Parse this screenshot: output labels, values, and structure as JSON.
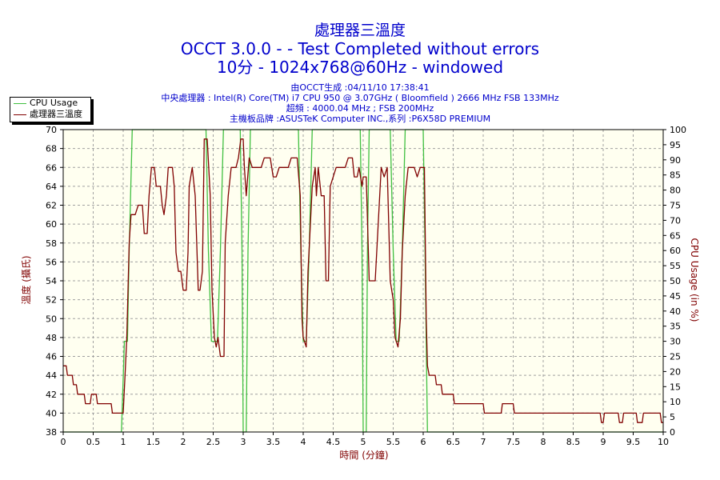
{
  "header": {
    "title": "處理器三溫度",
    "subtitle_1": "OCCT 3.0.0 -  - Test Completed without errors",
    "subtitle_2": "10分 - 1024x768@60Hz - windowed"
  },
  "info": {
    "line1": "由OCCT生成 :04/11/10 17:38:41",
    "line2": "中央處理器 : Intel(R) Core(TM) i7 CPU 950 @ 3.07GHz ( Bloomfield ) 2666 MHz FSB 133MHz",
    "line3": "超頻 : 4000.04 MHz ; FSB 200MHz",
    "line4": "主機板品牌 :ASUSTeK Computer INC.,系列 :P6X58D PREMIUM"
  },
  "colors": {
    "plot_background": "#fffff0",
    "grid": "#a0a0a0",
    "cpu_usage": "#40c040",
    "temperature": "#800000",
    "title_text": "#0000cc"
  },
  "chart_data": {
    "type": "line",
    "xlabel": "時間 (分鐘)",
    "ylabel_left": "溫度 (攝氏)",
    "ylabel_right": "CPU Usage (in %)",
    "xlim": [
      0,
      10
    ],
    "ylim_left": [
      38,
      70
    ],
    "ylim_right": [
      0,
      100
    ],
    "x_ticks": [
      "0",
      "0.5",
      "1",
      "1.5",
      "2",
      "2.5",
      "3",
      "3.5",
      "4",
      "4.5",
      "5",
      "5.5",
      "6",
      "6.5",
      "7",
      "7.5",
      "8",
      "8.5",
      "9",
      "9.5",
      "10"
    ],
    "y_left_ticks": [
      "38",
      "40",
      "42",
      "44",
      "46",
      "48",
      "50",
      "52",
      "54",
      "56",
      "58",
      "60",
      "62",
      "64",
      "66",
      "68",
      "70"
    ],
    "y_right_ticks": [
      "0",
      "5",
      "10",
      "15",
      "20",
      "25",
      "30",
      "35",
      "40",
      "45",
      "50",
      "55",
      "60",
      "65",
      "70",
      "75",
      "80",
      "85",
      "90",
      "95",
      "100"
    ],
    "grid": true,
    "legend_position": "top-left outside",
    "series": [
      {
        "name": "CPU Usage",
        "axis": "right",
        "points": [
          [
            0,
            0
          ],
          [
            0.97,
            0
          ],
          [
            1.02,
            30
          ],
          [
            1.07,
            30
          ],
          [
            1.1,
            60
          ],
          [
            1.15,
            100
          ],
          [
            2.38,
            100
          ],
          [
            2.42,
            60
          ],
          [
            2.47,
            30
          ],
          [
            2.57,
            30
          ],
          [
            2.62,
            60
          ],
          [
            2.67,
            100
          ],
          [
            2.95,
            100
          ],
          [
            2.98,
            60
          ],
          [
            3.0,
            0
          ],
          [
            3.05,
            0
          ],
          [
            3.08,
            60
          ],
          [
            3.12,
            100
          ],
          [
            3.92,
            100
          ],
          [
            3.96,
            60
          ],
          [
            4.0,
            30
          ],
          [
            4.05,
            30
          ],
          [
            4.1,
            60
          ],
          [
            4.15,
            100
          ],
          [
            4.95,
            100
          ],
          [
            4.98,
            60
          ],
          [
            5.0,
            0
          ],
          [
            5.05,
            0
          ],
          [
            5.07,
            60
          ],
          [
            5.1,
            100
          ],
          [
            5.45,
            100
          ],
          [
            5.5,
            60
          ],
          [
            5.55,
            30
          ],
          [
            5.6,
            30
          ],
          [
            5.65,
            60
          ],
          [
            5.7,
            100
          ],
          [
            6.0,
            100
          ],
          [
            6.03,
            60
          ],
          [
            6.07,
            0
          ],
          [
            10,
            0
          ]
        ]
      },
      {
        "name": "處理器三溫度",
        "axis": "left",
        "points": [
          [
            0,
            45
          ],
          [
            0.05,
            45
          ],
          [
            0.07,
            44
          ],
          [
            0.15,
            44
          ],
          [
            0.17,
            43
          ],
          [
            0.22,
            43
          ],
          [
            0.24,
            42
          ],
          [
            0.35,
            42
          ],
          [
            0.37,
            41
          ],
          [
            0.45,
            41
          ],
          [
            0.47,
            42
          ],
          [
            0.55,
            42
          ],
          [
            0.57,
            41
          ],
          [
            0.8,
            41
          ],
          [
            0.82,
            40
          ],
          [
            1.0,
            40
          ],
          [
            1.03,
            44
          ],
          [
            1.06,
            48
          ],
          [
            1.1,
            58
          ],
          [
            1.13,
            61
          ],
          [
            1.2,
            61
          ],
          [
            1.25,
            62
          ],
          [
            1.32,
            62
          ],
          [
            1.35,
            59
          ],
          [
            1.4,
            59
          ],
          [
            1.43,
            63
          ],
          [
            1.47,
            66
          ],
          [
            1.52,
            66
          ],
          [
            1.55,
            64
          ],
          [
            1.62,
            64
          ],
          [
            1.65,
            62
          ],
          [
            1.68,
            61
          ],
          [
            1.72,
            63
          ],
          [
            1.75,
            66
          ],
          [
            1.82,
            66
          ],
          [
            1.85,
            64
          ],
          [
            1.88,
            57
          ],
          [
            1.92,
            55
          ],
          [
            1.96,
            55
          ],
          [
            2.0,
            53
          ],
          [
            2.05,
            53
          ],
          [
            2.08,
            57
          ],
          [
            2.1,
            64
          ],
          [
            2.15,
            66
          ],
          [
            2.2,
            63
          ],
          [
            2.25,
            53
          ],
          [
            2.28,
            53
          ],
          [
            2.32,
            55
          ],
          [
            2.35,
            69
          ],
          [
            2.4,
            69
          ],
          [
            2.45,
            63
          ],
          [
            2.48,
            53
          ],
          [
            2.52,
            48
          ],
          [
            2.55,
            47
          ],
          [
            2.58,
            48
          ],
          [
            2.62,
            46
          ],
          [
            2.68,
            46
          ],
          [
            2.7,
            58
          ],
          [
            2.75,
            63
          ],
          [
            2.8,
            66
          ],
          [
            2.88,
            66
          ],
          [
            2.92,
            67
          ],
          [
            2.96,
            69
          ],
          [
            3.0,
            69
          ],
          [
            3.02,
            66
          ],
          [
            3.05,
            63
          ],
          [
            3.1,
            67
          ],
          [
            3.15,
            66
          ],
          [
            3.3,
            66
          ],
          [
            3.35,
            67
          ],
          [
            3.45,
            67
          ],
          [
            3.5,
            65
          ],
          [
            3.55,
            65
          ],
          [
            3.6,
            66
          ],
          [
            3.75,
            66
          ],
          [
            3.8,
            67
          ],
          [
            3.9,
            67
          ],
          [
            3.95,
            63
          ],
          [
            3.98,
            50
          ],
          [
            4.0,
            48
          ],
          [
            4.05,
            47
          ],
          [
            4.08,
            55
          ],
          [
            4.12,
            60
          ],
          [
            4.15,
            64
          ],
          [
            4.2,
            66
          ],
          [
            4.22,
            63
          ],
          [
            4.25,
            66
          ],
          [
            4.3,
            63
          ],
          [
            4.35,
            63
          ],
          [
            4.38,
            54
          ],
          [
            4.42,
            54
          ],
          [
            4.45,
            64
          ],
          [
            4.5,
            65
          ],
          [
            4.55,
            66
          ],
          [
            4.7,
            66
          ],
          [
            4.75,
            67
          ],
          [
            4.82,
            67
          ],
          [
            4.85,
            65
          ],
          [
            4.9,
            65
          ],
          [
            4.93,
            66
          ],
          [
            4.98,
            64
          ],
          [
            5.0,
            65
          ],
          [
            5.05,
            65
          ],
          [
            5.1,
            54
          ],
          [
            5.2,
            54
          ],
          [
            5.3,
            66
          ],
          [
            5.35,
            65
          ],
          [
            5.4,
            66
          ],
          [
            5.45,
            54
          ],
          [
            5.5,
            52
          ],
          [
            5.53,
            48
          ],
          [
            5.58,
            47
          ],
          [
            5.62,
            50
          ],
          [
            5.65,
            57
          ],
          [
            5.7,
            63
          ],
          [
            5.75,
            66
          ],
          [
            5.85,
            66
          ],
          [
            5.9,
            65
          ],
          [
            5.95,
            66
          ],
          [
            6.02,
            66
          ],
          [
            6.05,
            50
          ],
          [
            6.07,
            45
          ],
          [
            6.1,
            44
          ],
          [
            6.2,
            44
          ],
          [
            6.22,
            43
          ],
          [
            6.3,
            43
          ],
          [
            6.32,
            42
          ],
          [
            6.5,
            42
          ],
          [
            6.52,
            41
          ],
          [
            7.0,
            41
          ],
          [
            7.02,
            40
          ],
          [
            7.3,
            40
          ],
          [
            7.32,
            41
          ],
          [
            7.5,
            41
          ],
          [
            7.52,
            40
          ],
          [
            8.95,
            40
          ],
          [
            8.97,
            39
          ],
          [
            9.0,
            39
          ],
          [
            9.02,
            40
          ],
          [
            9.25,
            40
          ],
          [
            9.27,
            39
          ],
          [
            9.32,
            39
          ],
          [
            9.34,
            40
          ],
          [
            9.55,
            40
          ],
          [
            9.57,
            39
          ],
          [
            9.65,
            39
          ],
          [
            9.67,
            40
          ],
          [
            9.95,
            40
          ],
          [
            9.97,
            39
          ],
          [
            10,
            39
          ]
        ]
      }
    ]
  }
}
